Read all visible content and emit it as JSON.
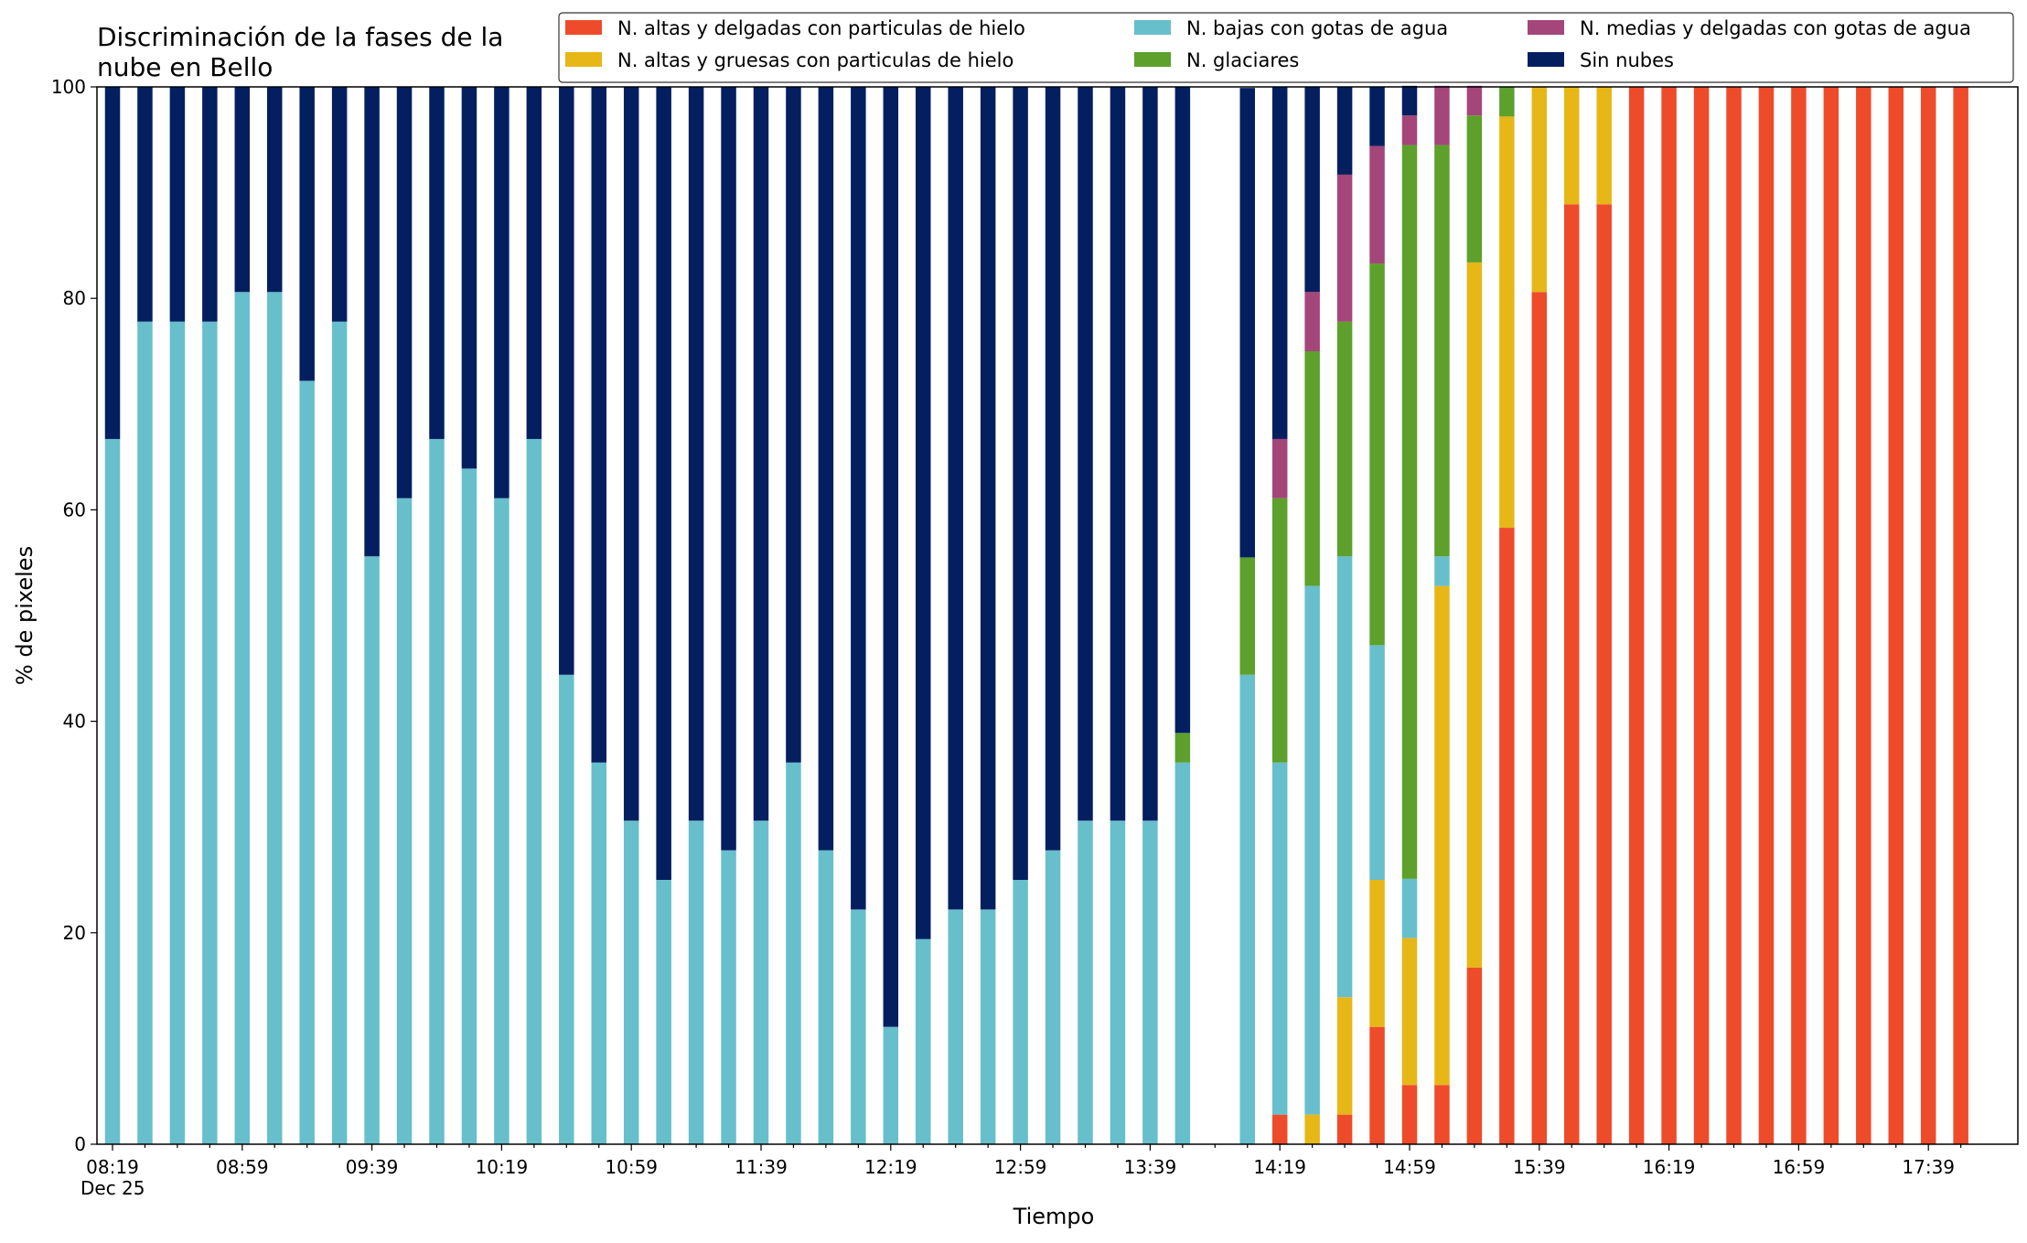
{
  "chart_data": {
    "type": "bar",
    "stacked": true,
    "title_lines": [
      "Discriminación de la fases de la",
      "nube en Bello"
    ],
    "xlabel": "Tiempo",
    "ylabel": "% de pixeles",
    "ylim": [
      0,
      100
    ],
    "yticks": [
      "0",
      "20",
      "40",
      "60",
      "80",
      "100"
    ],
    "x_tick_labels": [
      "08:19",
      "08:59",
      "09:39",
      "10:19",
      "10:59",
      "11:39",
      "12:19",
      "12:59",
      "13:39",
      "14:19",
      "14:59",
      "15:39",
      "16:19",
      "16:59",
      "17:39"
    ],
    "x_date_label": "Dec 25",
    "grid": false,
    "legend_position": "top-right",
    "categories": [
      "08:19",
      "08:29",
      "08:39",
      "08:49",
      "08:59",
      "09:09",
      "09:19",
      "09:29",
      "09:39",
      "09:49",
      "09:59",
      "10:09",
      "10:19",
      "10:29",
      "10:39",
      "10:49",
      "10:59",
      "11:09",
      "11:19",
      "11:29",
      "11:39",
      "11:49",
      "11:59",
      "12:09",
      "12:19",
      "12:29",
      "12:39",
      "12:49",
      "12:59",
      "13:09",
      "13:19",
      "13:29",
      "13:39",
      "13:49",
      "13:59",
      "14:09",
      "14:19",
      "14:29",
      "14:39",
      "14:49",
      "14:59",
      "15:09",
      "15:19",
      "15:29",
      "15:39",
      "15:49",
      "15:59",
      "16:09",
      "16:19",
      "16:29",
      "16:39",
      "16:49",
      "16:59",
      "17:09",
      "17:19",
      "17:29",
      "17:39",
      "17:49"
    ],
    "series": [
      {
        "name": "N. altas y delgadas con particulas de hielo",
        "color": "#ee4b2b",
        "values": [
          0,
          0,
          0,
          0,
          0,
          0,
          0,
          0,
          0,
          0,
          0,
          0,
          0,
          0,
          0,
          0,
          0,
          0,
          0,
          0,
          0,
          0,
          0,
          0,
          0,
          0,
          0,
          0,
          0,
          0,
          0,
          0,
          0,
          0,
          0,
          0,
          2.8,
          0,
          2.8,
          11.1,
          5.6,
          5.6,
          16.7,
          58.3,
          80.6,
          88.9,
          88.9,
          100,
          100,
          100,
          100,
          100,
          100,
          100,
          100,
          100,
          100,
          100
        ]
      },
      {
        "name": "N. altas y gruesas con particulas de hielo",
        "color": "#e6b717",
        "values": [
          0,
          0,
          0,
          0,
          0,
          0,
          0,
          0,
          0,
          0,
          0,
          0,
          0,
          0,
          0,
          0,
          0,
          0,
          0,
          0,
          0,
          0,
          0,
          0,
          0,
          0,
          0,
          0,
          0,
          0,
          0,
          0,
          0,
          0,
          0,
          0,
          0,
          2.8,
          11.1,
          13.9,
          13.9,
          47.2,
          66.7,
          38.9,
          19.4,
          11.1,
          11.1,
          0,
          0,
          0,
          0,
          0,
          0,
          0,
          0,
          0,
          0,
          0
        ]
      },
      {
        "name": "N. bajas con gotas de agua",
        "color": "#67bfcc",
        "values": [
          66.7,
          77.8,
          77.8,
          77.8,
          80.6,
          80.6,
          72.2,
          77.8,
          55.6,
          61.1,
          66.7,
          63.9,
          61.1,
          66.7,
          44.4,
          36.1,
          30.6,
          25.0,
          30.6,
          27.8,
          30.6,
          36.1,
          27.8,
          22.2,
          11.1,
          19.4,
          22.2,
          22.2,
          25.0,
          27.8,
          30.6,
          30.6,
          30.6,
          36.1,
          0,
          44.4,
          33.3,
          50.0,
          41.7,
          22.2,
          5.6,
          2.8,
          0,
          0,
          0,
          0,
          0,
          0,
          0,
          0,
          0,
          0,
          0,
          0,
          0,
          0,
          0,
          0
        ]
      },
      {
        "name": "N. glaciares",
        "color": "#5da02c",
        "values": [
          0,
          0,
          0,
          0,
          0,
          0,
          0,
          0,
          0,
          0,
          0,
          0,
          0,
          0,
          0,
          0,
          0,
          0,
          0,
          0,
          0,
          0,
          0,
          0,
          0,
          0,
          0,
          0,
          0,
          0,
          0,
          0,
          0,
          2.8,
          0,
          11.1,
          25.0,
          22.2,
          22.2,
          36.1,
          69.4,
          38.9,
          13.9,
          2.8,
          0,
          0,
          0,
          0,
          0,
          0,
          0,
          0,
          0,
          0,
          0,
          0,
          0,
          0
        ]
      },
      {
        "name": "N. medias y delgadas con gotas de agua",
        "color": "#a4467a",
        "values": [
          0,
          0,
          0,
          0,
          0,
          0,
          0,
          0,
          0,
          0,
          0,
          0,
          0,
          0,
          0,
          0,
          0,
          0,
          0,
          0,
          0,
          0,
          0,
          0,
          0,
          0,
          0,
          0,
          0,
          0,
          0,
          0,
          0,
          0,
          0,
          0,
          5.6,
          5.6,
          13.9,
          11.1,
          2.8,
          5.6,
          2.8,
          0,
          0,
          0,
          0,
          0,
          0,
          0,
          0,
          0,
          0,
          0,
          0,
          0,
          0,
          0
        ]
      },
      {
        "name": "Sin nubes",
        "color": "#041f5f",
        "values": [
          33.3,
          22.2,
          22.2,
          22.2,
          19.4,
          19.4,
          27.8,
          22.2,
          44.4,
          38.9,
          33.3,
          36.1,
          38.9,
          33.3,
          55.6,
          63.9,
          69.4,
          75.0,
          69.4,
          72.2,
          69.4,
          63.9,
          72.2,
          77.8,
          88.9,
          80.6,
          77.8,
          77.8,
          75.0,
          72.2,
          69.4,
          69.4,
          69.4,
          61.1,
          0,
          44.4,
          33.3,
          19.4,
          8.3,
          5.6,
          2.8,
          0,
          0,
          0,
          0,
          0,
          0,
          0,
          0,
          0,
          0,
          0,
          0,
          0,
          0,
          0,
          0,
          0
        ]
      }
    ]
  }
}
